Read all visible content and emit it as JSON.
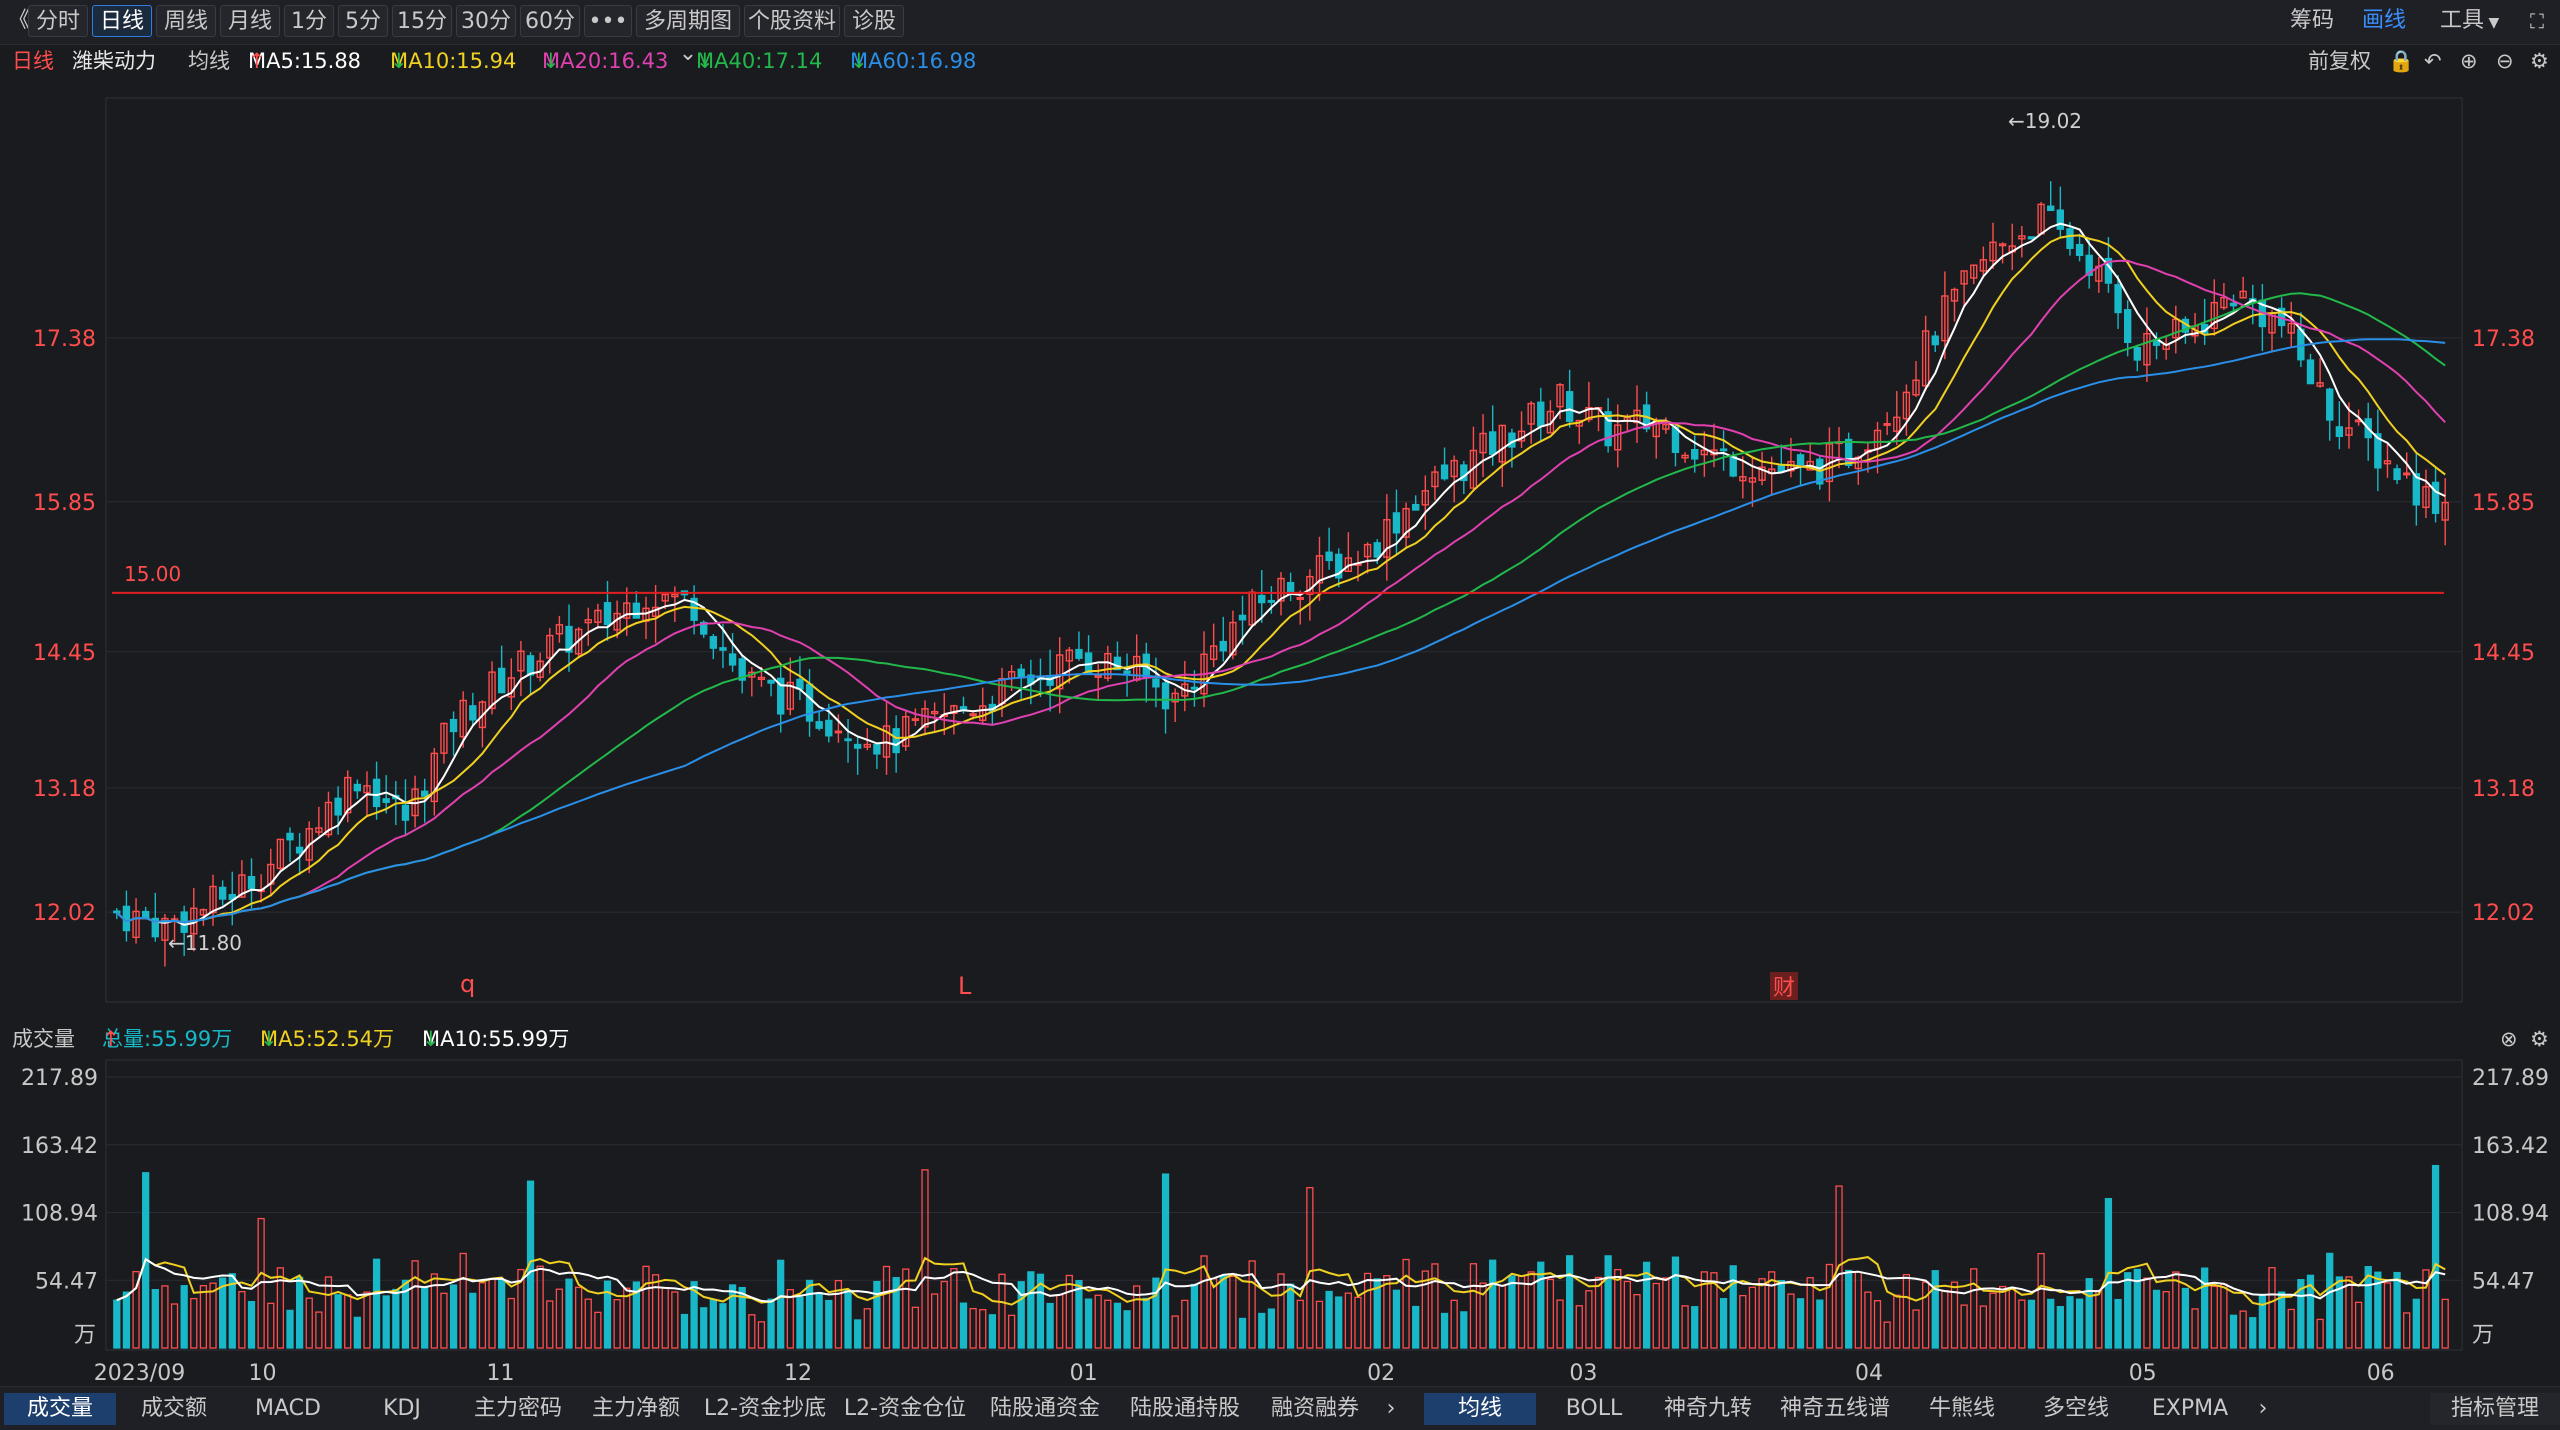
{
  "toolbar": {
    "back": "《",
    "buttons": [
      "分时",
      "日线",
      "周线",
      "月线",
      "1分",
      "5分",
      "15分",
      "30分",
      "60分",
      "•••",
      "多周期图",
      "个股资料",
      "诊股"
    ],
    "active_index": 1,
    "right": {
      "chips": "筹码",
      "draw": "画线",
      "tools": "工具"
    }
  },
  "legend": {
    "period": "日线",
    "stock": "潍柴动力",
    "kind": "均线",
    "ma5": "MA5:15.88",
    "ma10": "MA10:15.94",
    "ma20": "MA20:16.43",
    "ma40": "MA40:17.14",
    "ma60": "MA60:16.98",
    "adjust": "前复权"
  },
  "volume_header": {
    "name": "成交量",
    "total": "总量:55.99万",
    "ma5": "MA5:52.54万",
    "ma10": "MA10:55.99万"
  },
  "colors": {
    "up": "#ff4d4d",
    "down": "#18b8c8",
    "ma5": "#ffffff",
    "ma10": "#f0d020",
    "ma20": "#e040b0",
    "ma40": "#22b84a",
    "ma60": "#2a8fe8",
    "line15": "#e02020",
    "axis": "#ff4d4d"
  },
  "chart_data": {
    "type": "candlestick",
    "price_axis": {
      "ticks": [
        "17.38",
        "15.85",
        "14.45",
        "13.18",
        "12.02"
      ],
      "min": 11.2,
      "max": 19.6
    },
    "annotations": {
      "high": "←19.02",
      "low": "←11.80",
      "level": "15.00",
      "markers": [
        "q",
        "L",
        "财"
      ]
    },
    "x_labels": [
      "2023/09",
      "10",
      "11",
      "12",
      "01",
      "02",
      "03",
      "04",
      "05",
      "06"
    ],
    "volume_axis": {
      "ticks": [
        "217.89",
        "163.42",
        "108.94",
        "54.47"
      ],
      "unit": "万",
      "max": 230
    },
    "trend": [
      [
        0,
        12.02
      ],
      [
        5,
        11.9
      ],
      [
        10,
        12.1
      ],
      [
        15,
        12.4
      ],
      [
        20,
        12.8
      ],
      [
        25,
        13.3
      ],
      [
        30,
        12.9
      ],
      [
        35,
        13.8
      ],
      [
        40,
        14.2
      ],
      [
        45,
        14.5
      ],
      [
        50,
        14.7
      ],
      [
        55,
        15.0
      ],
      [
        60,
        14.9
      ],
      [
        65,
        14.2
      ],
      [
        70,
        14.0
      ],
      [
        75,
        13.8
      ],
      [
        80,
        13.6
      ],
      [
        85,
        13.8
      ],
      [
        90,
        14.0
      ],
      [
        95,
        14.2
      ],
      [
        100,
        14.4
      ],
      [
        105,
        14.3
      ],
      [
        110,
        14.0
      ],
      [
        115,
        14.6
      ],
      [
        120,
        15.0
      ],
      [
        125,
        15.2
      ],
      [
        130,
        15.4
      ],
      [
        135,
        15.9
      ],
      [
        140,
        16.2
      ],
      [
        145,
        16.5
      ],
      [
        150,
        16.8
      ],
      [
        155,
        16.5
      ],
      [
        160,
        16.6
      ],
      [
        165,
        16.3
      ],
      [
        170,
        16.2
      ],
      [
        175,
        16.1
      ],
      [
        180,
        16.3
      ],
      [
        185,
        16.8
      ],
      [
        190,
        17.6
      ],
      [
        195,
        18.2
      ],
      [
        200,
        18.5
      ],
      [
        205,
        18.1
      ],
      [
        210,
        17.3
      ],
      [
        215,
        17.4
      ],
      [
        220,
        17.8
      ],
      [
        225,
        17.5
      ],
      [
        230,
        16.7
      ],
      [
        235,
        16.3
      ],
      [
        240,
        15.9
      ],
      [
        242,
        15.85
      ]
    ]
  },
  "bottom_tabs": {
    "left": [
      "成交量",
      "成交额",
      "MACD",
      "KDJ",
      "主力密码",
      "主力净额",
      "L2-资金抄底",
      "L2-资金仓位",
      "陆股通资金",
      "陆股通持股",
      "融资融券"
    ],
    "right": [
      "均线",
      "BOLL",
      "神奇九转",
      "神奇五线谱",
      "牛熊线",
      "多空线",
      "EXPMA"
    ],
    "manage": "指标管理"
  }
}
